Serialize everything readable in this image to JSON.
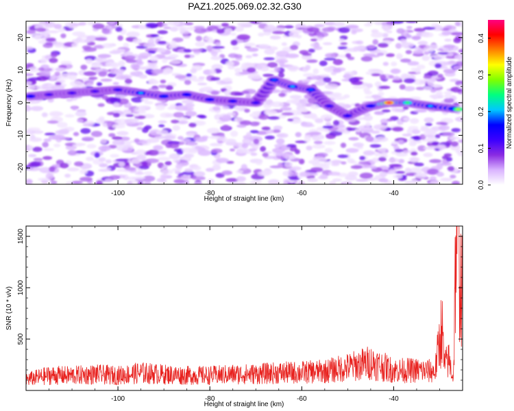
{
  "title": "PAZ1.2025.069.02.32.G30",
  "chart_data": [
    {
      "type": "heatmap",
      "xlabel": "Height of straight line (km)",
      "ylabel": "Frequency (Hz)",
      "xlim": [
        -120,
        -25
      ],
      "ylim": [
        -25,
        25
      ],
      "xticks": [
        -100,
        -80,
        -60,
        -40
      ],
      "xtick_labels": [
        "-100",
        "-80",
        "-60",
        "-40"
      ],
      "yticks": [
        -20,
        -10,
        0,
        10,
        20
      ],
      "ytick_labels": [
        "-20",
        "-10",
        "0",
        "10",
        "20"
      ],
      "colorbar": {
        "label": "Normalized spectral amplitude",
        "range": [
          0.0,
          0.45
        ],
        "ticks": [
          0.0,
          0.1,
          0.2,
          0.3,
          0.4
        ],
        "tick_labels": [
          "0.0",
          "0.1",
          "0.2",
          "0.3",
          "0.4"
        ],
        "colors": [
          "#ffffff",
          "#d9b3ff",
          "#8a2be2",
          "#3b00ff",
          "#0000ff",
          "#00c8ff",
          "#00ff80",
          "#80ff00",
          "#ffff00",
          "#ff8000",
          "#ff0000",
          "#ff0080"
        ]
      },
      "ridge": [
        {
          "x": -119,
          "freq": 2.0,
          "amp": 0.16
        },
        {
          "x": -115,
          "freq": 2.5,
          "amp": 0.12
        },
        {
          "x": -110,
          "freq": 3.0,
          "amp": 0.12
        },
        {
          "x": -105,
          "freq": 3.5,
          "amp": 0.12
        },
        {
          "x": -100,
          "freq": 4.0,
          "amp": 0.13
        },
        {
          "x": -95,
          "freq": 3.0,
          "amp": 0.2
        },
        {
          "x": -90,
          "freq": 2.0,
          "amp": 0.17
        },
        {
          "x": -85,
          "freq": 2.5,
          "amp": 0.16
        },
        {
          "x": -80,
          "freq": 1.0,
          "amp": 0.15
        },
        {
          "x": -75,
          "freq": 0.5,
          "amp": 0.14
        },
        {
          "x": -70,
          "freq": 0.0,
          "amp": 0.13
        },
        {
          "x": -66,
          "freq": 7.0,
          "amp": 0.18
        },
        {
          "x": -62,
          "freq": 5.0,
          "amp": 0.2
        },
        {
          "x": -58,
          "freq": 4.0,
          "amp": 0.18
        },
        {
          "x": -54,
          "freq": -1.0,
          "amp": 0.13
        },
        {
          "x": -50,
          "freq": -4.0,
          "amp": 0.14
        },
        {
          "x": -45,
          "freq": -1.0,
          "amp": 0.16
        },
        {
          "x": -41,
          "freq": 0.0,
          "amp": 0.44
        },
        {
          "x": -37,
          "freq": 0.0,
          "amp": 0.26
        },
        {
          "x": -32,
          "freq": -1.0,
          "amp": 0.2
        },
        {
          "x": -26,
          "freq": -2.0,
          "amp": 0.3
        }
      ]
    },
    {
      "type": "line",
      "xlabel": "Height of straight line (km)",
      "ylabel": "SNR (10 * v/v)",
      "xlim": [
        -120,
        -25
      ],
      "ylim": [
        0,
        1600
      ],
      "xticks": [
        -100,
        -80,
        -60,
        -40
      ],
      "xtick_labels": [
        "-100",
        "-80",
        "-60",
        "-40"
      ],
      "yticks": [
        500,
        1000,
        1500
      ],
      "ytick_labels": [
        "500",
        "1000",
        "1500"
      ],
      "color": "#e8221f",
      "series": [
        {
          "x": [
            -120,
            -115,
            -110,
            -105,
            -100,
            -95,
            -90,
            -85,
            -80,
            -75,
            -70,
            -65,
            -60,
            -55,
            -50,
            -45,
            -40,
            -35,
            -31,
            -29.5,
            -29,
            -28,
            -27,
            -26.5,
            -26,
            -25.5,
            -25
          ],
          "y": [
            110,
            150,
            150,
            160,
            150,
            175,
            160,
            150,
            150,
            160,
            165,
            175,
            180,
            190,
            230,
            280,
            200,
            200,
            190,
            650,
            250,
            300,
            120,
            1400,
            1600,
            1100,
            900
          ]
        }
      ]
    }
  ]
}
